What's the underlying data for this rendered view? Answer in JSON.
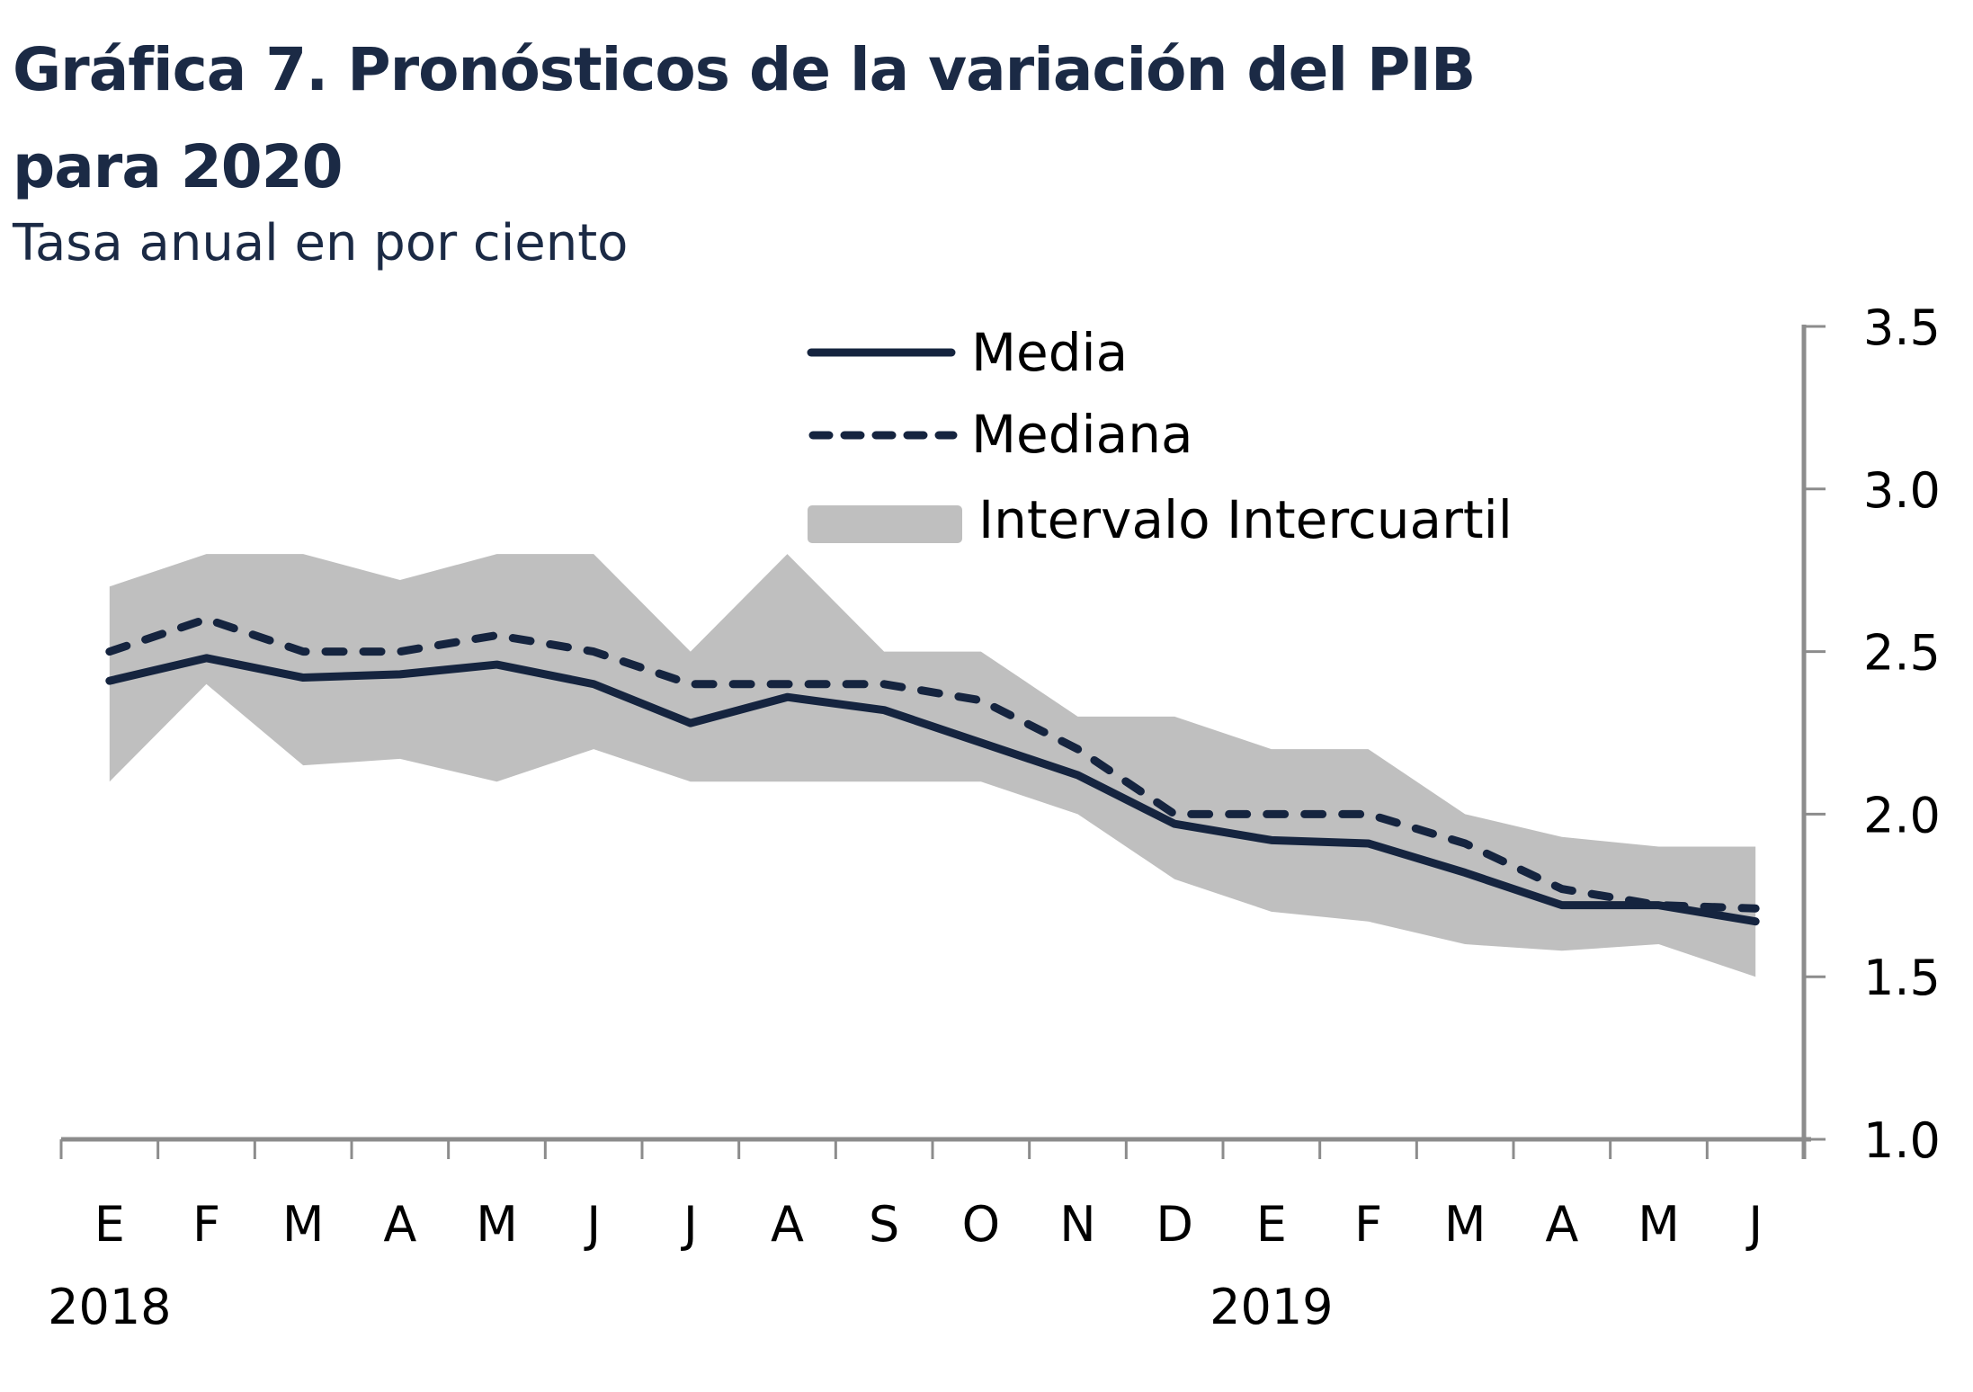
{
  "title_line1": "Gráfica 7. Pronósticos de la variación del PIB",
  "title_line2": "para 2020",
  "subtitle": "Tasa anual en por ciento",
  "colors": {
    "line": "#15243f",
    "band": "#bfbfbf",
    "axis": "#8c8c8c",
    "title": "#1b2a45"
  },
  "chart_data": {
    "type": "line",
    "title": "Gráfica 7. Pronósticos de la variación del PIB para 2020",
    "subtitle": "Tasa anual en por ciento",
    "xlabel": "",
    "ylabel": "",
    "ylim": [
      1.0,
      3.5
    ],
    "yticks": [
      "3.5",
      "3.0",
      "2.5",
      "2.0",
      "1.5",
      "1.0"
    ],
    "ytick_values": [
      3.5,
      3.0,
      2.5,
      2.0,
      1.5,
      1.0
    ],
    "y_axis_side": "right",
    "grid": false,
    "legend_position": "top-center",
    "categories": [
      "E",
      "F",
      "M",
      "A",
      "M",
      "J",
      "J",
      "A",
      "S",
      "O",
      "N",
      "D",
      "E",
      "F",
      "M",
      "A",
      "M",
      "J"
    ],
    "year_labels": [
      {
        "label": "2018",
        "category_index": 0
      },
      {
        "label": "2019",
        "category_index": 12
      }
    ],
    "series": [
      {
        "name": "Media",
        "style": "solid",
        "values": [
          2.41,
          2.48,
          2.42,
          2.43,
          2.46,
          2.4,
          2.28,
          2.36,
          2.32,
          2.22,
          2.12,
          1.97,
          1.92,
          1.91,
          1.82,
          1.72,
          1.72,
          1.67
        ]
      },
      {
        "name": "Mediana",
        "style": "dashed",
        "values": [
          2.5,
          2.6,
          2.5,
          2.5,
          2.55,
          2.5,
          2.4,
          2.4,
          2.4,
          2.35,
          2.2,
          2.0,
          2.0,
          2.0,
          1.91,
          1.77,
          1.72,
          1.71
        ]
      }
    ],
    "band": {
      "name": "Intervalo Intercuartil",
      "upper": [
        2.7,
        2.8,
        2.8,
        2.72,
        2.8,
        2.8,
        2.5,
        2.8,
        2.5,
        2.5,
        2.3,
        2.3,
        2.2,
        2.2,
        2.0,
        1.93,
        1.9,
        1.9
      ],
      "lower": [
        2.1,
        2.4,
        2.15,
        2.17,
        2.1,
        2.2,
        2.1,
        2.1,
        2.1,
        2.1,
        2.0,
        1.8,
        1.7,
        1.67,
        1.6,
        1.58,
        1.6,
        1.5
      ]
    },
    "legend": [
      "Media",
      "Mediana",
      "Intervalo Intercuartil"
    ]
  }
}
